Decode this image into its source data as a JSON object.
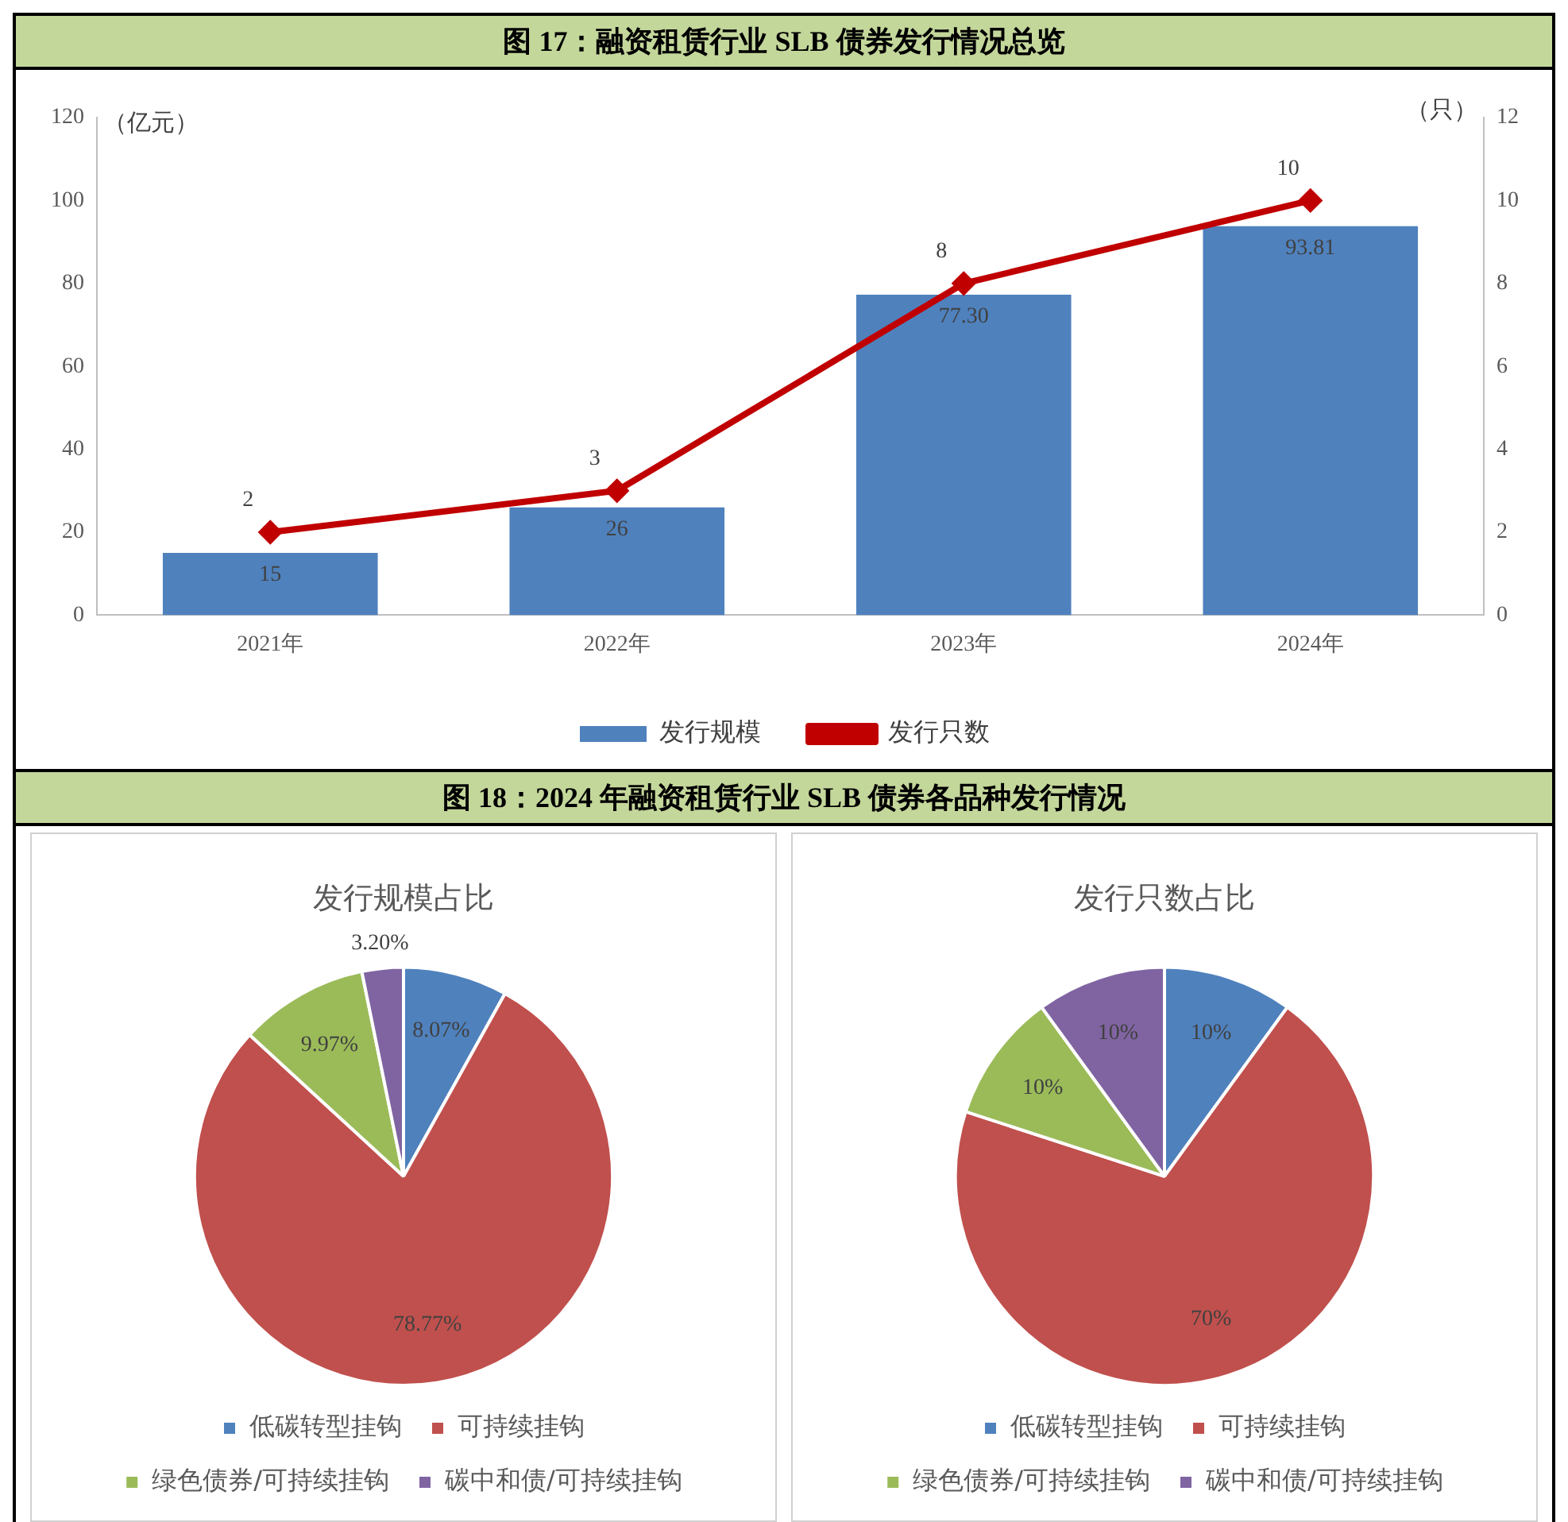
{
  "chart_data": [
    {
      "type": "bar",
      "title": "图 17：融资租赁行业 SLB 债券发行情况总览",
      "ylabel": "（亿元）",
      "y2label": "（只）",
      "categories": [
        "2021年",
        "2022年",
        "2023年",
        "2024年"
      ],
      "series": [
        {
          "name": "发行规模",
          "type": "bar",
          "color": "#4f81bd",
          "values": [
            15,
            26,
            77.3,
            93.81
          ],
          "value_labels": [
            "15",
            "26",
            "77.30",
            "93.81"
          ]
        },
        {
          "name": "发行只数",
          "type": "line",
          "axis": "y2",
          "color": "#c00000",
          "marker": "diamond",
          "values": [
            2,
            3,
            8,
            10
          ],
          "value_labels": [
            "2",
            "3",
            "8",
            "10"
          ]
        }
      ],
      "ylim": [
        0,
        120
      ],
      "yticks": [
        0,
        20,
        40,
        60,
        80,
        100,
        120
      ],
      "y2lim": [
        0,
        12
      ],
      "y2ticks": [
        0,
        2,
        4,
        6,
        8,
        10,
        12
      ],
      "legend": "bottom"
    },
    {
      "type": "pie",
      "title": "图 18：2024 年融资租赁行业 SLB 债券各品种发行情况",
      "subtitle": "发行规模占比",
      "categories": [
        "低碳转型挂钩",
        "可持续挂钩",
        "绿色债券/可持续挂钩",
        "碳中和债/可持续挂钩"
      ],
      "values": [
        8.07,
        78.77,
        9.97,
        3.2
      ],
      "colors": [
        "#4f81bd",
        "#c0504d",
        "#9bbb59",
        "#8064a2"
      ],
      "value_labels": [
        "8.07%",
        "78.77%",
        "9.97%",
        "3.20%"
      ],
      "legend": "bottom"
    },
    {
      "type": "pie",
      "title": "发行只数占比",
      "categories": [
        "低碳转型挂钩",
        "可持续挂钩",
        "绿色债券/可持续挂钩",
        "碳中和债/可持续挂钩"
      ],
      "values": [
        10,
        70,
        10,
        10
      ],
      "colors": [
        "#4f81bd",
        "#c0504d",
        "#9bbb59",
        "#8064a2"
      ],
      "value_labels": [
        "10%",
        "70%",
        "10%",
        "10%"
      ],
      "legend": "bottom"
    }
  ]
}
